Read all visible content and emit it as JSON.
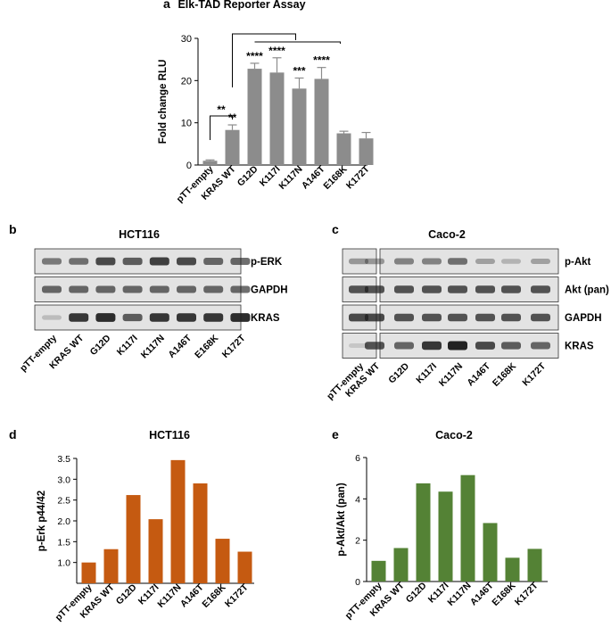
{
  "colors": {
    "bar_a": "#8c8c8c",
    "bar_d": "#c55a11",
    "bar_e": "#548235",
    "blot_bg": "#e3e3e3",
    "band": "#222222"
  },
  "chart_data": [
    {
      "id": "a",
      "panel_label": "a",
      "type": "bar",
      "title": "Elk-TAD Reporter Assay",
      "xlabel": "",
      "ylabel": "Fold change RLU",
      "ylim": [
        0,
        30
      ],
      "yticks": [
        "0",
        "10",
        "20",
        "30"
      ],
      "categories": [
        "pTT-empty",
        "KRAS WT",
        "G12D",
        "K117I",
        "K117N",
        "A146T",
        "E168K",
        "K172T"
      ],
      "values": [
        1.0,
        8.3,
        22.8,
        21.9,
        18.1,
        20.4,
        7.5,
        6.3
      ],
      "errors": [
        0.2,
        1.2,
        1.3,
        3.5,
        2.5,
        2.7,
        0.5,
        1.4
      ],
      "significance": [
        "",
        "**",
        "****",
        "****",
        "***",
        "****",
        "",
        ""
      ],
      "bracket_label": "**"
    },
    {
      "id": "d",
      "panel_label": "d",
      "type": "bar",
      "title": "HCT116",
      "xlabel": "",
      "ylabel": "p-Erk p44/42",
      "ylim": [
        0.5,
        3.5
      ],
      "yticks": [
        "1.0",
        "1.5",
        "2.0",
        "2.5",
        "3.0",
        "3.5"
      ],
      "categories": [
        "pTT-empty",
        "KRAS WT",
        "G12D",
        "K117I",
        "K117N",
        "A146T",
        "E168K",
        "K172T"
      ],
      "values": [
        1.0,
        1.32,
        2.62,
        2.04,
        3.46,
        2.9,
        1.57,
        1.26
      ]
    },
    {
      "id": "e",
      "panel_label": "e",
      "type": "bar",
      "title": "Caco-2",
      "xlabel": "",
      "ylabel": "p-Akt/Akt (pan)",
      "ylim": [
        0,
        6
      ],
      "yticks": [
        "0",
        "2",
        "4",
        "6"
      ],
      "categories": [
        "pTT-empty",
        "KRAS WT",
        "G12D",
        "K117I",
        "K117N",
        "A146T",
        "E168K",
        "K172T"
      ],
      "values": [
        1.0,
        1.62,
        4.75,
        4.35,
        5.15,
        2.83,
        1.15,
        1.58
      ]
    }
  ],
  "blots": {
    "b": {
      "panel_label": "b",
      "title": "HCT116",
      "rows": [
        {
          "label": "p-ERK",
          "intensity": [
            0.55,
            0.6,
            0.8,
            0.7,
            0.85,
            0.8,
            0.65,
            0.65
          ]
        },
        {
          "label": "GAPDH",
          "intensity": [
            0.65,
            0.65,
            0.65,
            0.65,
            0.65,
            0.65,
            0.65,
            0.65
          ]
        },
        {
          "label": "KRAS",
          "intensity": [
            0.2,
            0.9,
            0.95,
            0.7,
            0.9,
            0.9,
            0.9,
            0.95
          ]
        }
      ],
      "lanes": [
        "pTT-empty",
        "KRAS WT",
        "G12D",
        "K117I",
        "K117N",
        "A146T",
        "E168K",
        "K172T"
      ]
    },
    "c": {
      "panel_label": "c",
      "title": "Caco-2",
      "rows": [
        {
          "label": "p-Akt",
          "intensity": [
            0.4,
            0.4,
            0.5,
            0.5,
            0.6,
            0.35,
            0.25,
            0.35
          ]
        },
        {
          "label": "Akt (pan)",
          "intensity": [
            0.75,
            0.75,
            0.75,
            0.75,
            0.75,
            0.75,
            0.75,
            0.75
          ]
        },
        {
          "label": "GAPDH",
          "intensity": [
            0.8,
            0.8,
            0.75,
            0.75,
            0.75,
            0.75,
            0.75,
            0.75
          ]
        },
        {
          "label": "KRAS",
          "intensity": [
            0.15,
            0.75,
            0.65,
            0.9,
            1.0,
            0.8,
            0.7,
            0.65
          ]
        }
      ],
      "lanes": [
        "pTT-empty",
        "KRAS WT",
        "G12D",
        "K117I",
        "K117N",
        "A146T",
        "E168K",
        "K172T"
      ]
    }
  }
}
